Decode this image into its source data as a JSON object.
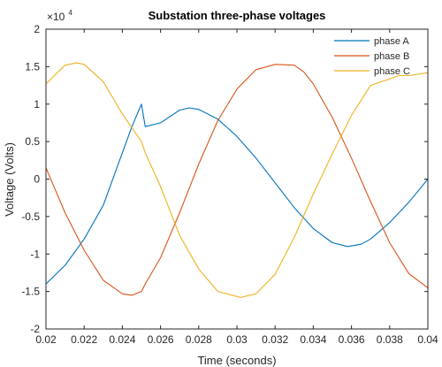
{
  "chart_data": {
    "type": "line",
    "title": "Substation three-phase voltages",
    "xlabel": "Time (seconds)",
    "ylabel": "Voltage (Volts)",
    "xlim": [
      0.02,
      0.04
    ],
    "ylim": [
      -20000,
      20000
    ],
    "y_exponent_base": "×10",
    "y_exponent_power": "4",
    "x_ticks": [
      0.02,
      0.022,
      0.024,
      0.026,
      0.028,
      0.03,
      0.032,
      0.034,
      0.036,
      0.038,
      0.04
    ],
    "x_tick_labels": [
      "0.02",
      "0.022",
      "0.024",
      "0.026",
      "0.028",
      "0.03",
      "0.032",
      "0.034",
      "0.036",
      "0.038",
      "0.04"
    ],
    "y_ticks": [
      -20000,
      -15000,
      -10000,
      -5000,
      0,
      5000,
      10000,
      15000,
      20000
    ],
    "y_tick_labels": [
      "-2",
      "-1.5",
      "-1",
      "-0.5",
      "0",
      "0.5",
      "1",
      "1.5",
      "2"
    ],
    "grid": false,
    "legend_position": "top-right",
    "series": [
      {
        "name": "phase A",
        "color": "#0072BD",
        "x": [
          0.02,
          0.021,
          0.022,
          0.023,
          0.024,
          0.0245,
          0.025,
          0.0252,
          0.026,
          0.027,
          0.0275,
          0.028,
          0.029,
          0.03,
          0.031,
          0.032,
          0.033,
          0.034,
          0.035,
          0.0358,
          0.0365,
          0.037,
          0.038,
          0.039,
          0.04
        ],
        "y": [
          -14000,
          -11500,
          -8000,
          -3500,
          3500,
          7000,
          10000,
          7000,
          7500,
          9200,
          9500,
          9300,
          8000,
          5700,
          2800,
          -500,
          -3800,
          -6600,
          -8500,
          -9000,
          -8700,
          -8000,
          -5800,
          -3100,
          0
        ]
      },
      {
        "name": "phase B",
        "color": "#D95319",
        "x": [
          0.02,
          0.021,
          0.022,
          0.023,
          0.024,
          0.0245,
          0.025,
          0.0252,
          0.026,
          0.027,
          0.028,
          0.029,
          0.03,
          0.031,
          0.032,
          0.033,
          0.0335,
          0.034,
          0.035,
          0.036,
          0.037,
          0.038,
          0.039,
          0.04
        ],
        "y": [
          1500,
          -4500,
          -9500,
          -13500,
          -15300,
          -15500,
          -15000,
          -14000,
          -10500,
          -4500,
          2000,
          7800,
          12000,
          14600,
          15300,
          15200,
          14300,
          12700,
          8200,
          2800,
          -3000,
          -8500,
          -12600,
          -14500
        ]
      },
      {
        "name": "phase C",
        "color": "#EDB120",
        "x": [
          0.02,
          0.021,
          0.0216,
          0.022,
          0.023,
          0.024,
          0.025,
          0.0252,
          0.026,
          0.027,
          0.028,
          0.029,
          0.0302,
          0.031,
          0.032,
          0.033,
          0.034,
          0.035,
          0.036,
          0.037,
          0.0385,
          0.039,
          0.04
        ],
        "y": [
          12700,
          15200,
          15500,
          15300,
          13000,
          8700,
          5000,
          3500,
          -1000,
          -7500,
          -12000,
          -15000,
          -15800,
          -15300,
          -12700,
          -7800,
          -2000,
          3400,
          8500,
          12500,
          13800,
          13800,
          14200
        ]
      }
    ]
  }
}
